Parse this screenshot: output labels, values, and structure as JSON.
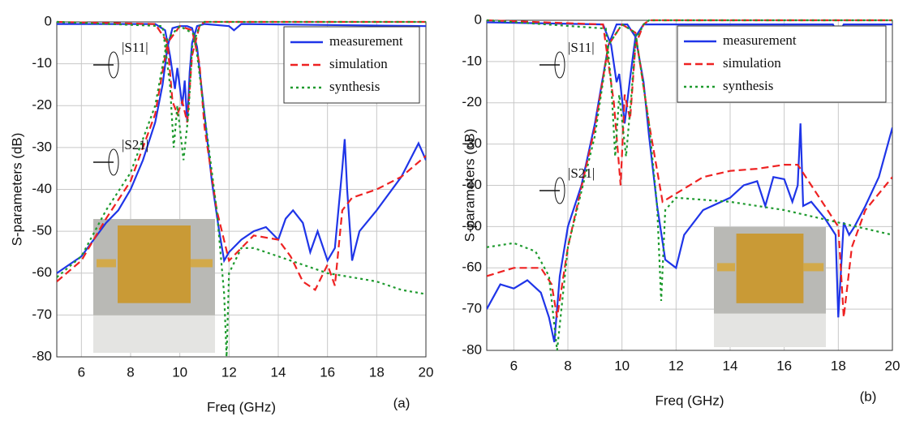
{
  "chart_data": [
    {
      "type": "line",
      "ylabel": "S-parameters (dB)",
      "xlabel": "Freq (GHz)",
      "panel": "(a)",
      "xlim": [
        5,
        20
      ],
      "xticks": [
        6,
        8,
        10,
        12,
        14,
        16,
        18,
        20
      ],
      "ylim": [
        -80,
        0
      ],
      "yticks": [
        -80,
        -70,
        -60,
        -50,
        -40,
        -30,
        -20,
        -10,
        0
      ],
      "grid": true,
      "legend": "upper right",
      "annotations": [
        "|S11|",
        "|S21|"
      ],
      "series": [
        {
          "name": "measurement",
          "color": "#1f35e8",
          "dash": "solid",
          "curves": [
            {
              "x": [
                5,
                5.5,
                6,
                6.5,
                7,
                7.5,
                8,
                8.5,
                9,
                9.3,
                9.5,
                9.7,
                10,
                10.3,
                10.5,
                10.7,
                11,
                11.3,
                11.6,
                11.8,
                12,
                12.5,
                13,
                13.5,
                14,
                14.3,
                14.6,
                15,
                15.3,
                15.6,
                16,
                16.3,
                16.6,
                16.7,
                16.8,
                17,
                17.3,
                18,
                19,
                19.7,
                20
              ],
              "values": [
                -60,
                -58,
                -56,
                -52,
                -48,
                -45,
                -40,
                -33,
                -24,
                -15,
                -6,
                -1.5,
                -1,
                -1,
                -1.5,
                -6,
                -22,
                -38,
                -50,
                -57,
                -55,
                -52,
                -50,
                -49,
                -52,
                -47,
                -45,
                -48,
                -55,
                -50,
                -57,
                -54,
                -35,
                -28,
                -40,
                -57,
                -50,
                -45,
                -37,
                -29,
                -33
              ]
            },
            {
              "x": [
                5,
                9,
                9.4,
                9.6,
                9.8,
                9.9,
                10.1,
                10.2,
                10.3,
                10.4,
                10.5,
                10.7,
                11,
                12,
                12.2,
                12.5,
                20
              ],
              "values": [
                -0.5,
                -0.5,
                -2,
                -8,
                -16,
                -11,
                -20,
                -14,
                -24,
                -12,
                -5,
                -1,
                -0.5,
                -1,
                -2,
                -0.5,
                -1
              ]
            }
          ]
        },
        {
          "name": "simulation",
          "color": "#ee2222",
          "dash": "dashed",
          "curves": [
            {
              "x": [
                5,
                6,
                7,
                8,
                9,
                9.5,
                10,
                10.5,
                10.8,
                11,
                11.5,
                12,
                12.5,
                13,
                14,
                14.5,
                15,
                15.5,
                16,
                16.3,
                16.6,
                17,
                18,
                19,
                20
              ],
              "values": [
                -62,
                -57,
                -47,
                -38,
                -22,
                -5,
                -1,
                -2,
                -10,
                -25,
                -45,
                -57,
                -54,
                -51,
                -52,
                -56,
                -62,
                -64,
                -58,
                -63,
                -45,
                -42,
                -40,
                -37,
                -32
              ]
            },
            {
              "x": [
                5,
                9,
                9.5,
                9.7,
                9.9,
                10.1,
                10.3,
                10.5,
                10.8,
                11,
                20
              ],
              "values": [
                0,
                -0.5,
                -5,
                -19,
                -22,
                -19,
                -24,
                -8,
                -1,
                0,
                0
              ]
            }
          ]
        },
        {
          "name": "synthesis",
          "color": "#1e9a2e",
          "dash": "dotted",
          "curves": [
            {
              "x": [
                5,
                6,
                7,
                8,
                9,
                9.5,
                10,
                10.6,
                11,
                11.5,
                11.8,
                11.9,
                12,
                12.5,
                13,
                14,
                15,
                16,
                17,
                18,
                19,
                20
              ],
              "values": [
                -61,
                -56,
                -45,
                -36,
                -20,
                -4,
                -1,
                -3,
                -22,
                -45,
                -65,
                -80,
                -60,
                -54,
                -54,
                -56,
                -58,
                -60,
                -61,
                -62,
                -64,
                -65
              ]
            },
            {
              "x": [
                5,
                9.3,
                9.6,
                9.75,
                9.9,
                10.15,
                10.35,
                10.5,
                10.8,
                11,
                20
              ],
              "values": [
                0,
                -1,
                -15,
                -30,
                -20,
                -33,
                -22,
                -6,
                -1,
                0,
                0
              ]
            }
          ]
        }
      ]
    },
    {
      "type": "line",
      "ylabel": "S-parameters (dB)",
      "xlabel": "Freq (GHz)",
      "panel": "(b)",
      "xlim": [
        5,
        20
      ],
      "xticks": [
        6,
        8,
        10,
        12,
        14,
        16,
        18,
        20
      ],
      "ylim": [
        -80,
        0
      ],
      "yticks": [
        -80,
        -70,
        -60,
        -50,
        -40,
        -30,
        -20,
        -10,
        0
      ],
      "grid": true,
      "legend": "upper right",
      "annotations": [
        "|S11|",
        "|S21|"
      ],
      "series": [
        {
          "name": "measurement",
          "color": "#1f35e8",
          "dash": "solid",
          "curves": [
            {
              "x": [
                5,
                5.5,
                6,
                6.5,
                7,
                7.3,
                7.5,
                7.7,
                8,
                8.5,
                9,
                9.5,
                9.8,
                10.2,
                10.5,
                10.8,
                11,
                11.3,
                11.6,
                12,
                12.3,
                13,
                14,
                14.5,
                15,
                15.3,
                15.6,
                16,
                16.3,
                16.5,
                16.6,
                16.7,
                17,
                17.5,
                17.9,
                18,
                18.2,
                18.4,
                18.6,
                19,
                19.5,
                20
              ],
              "values": [
                -70,
                -64,
                -65,
                -63,
                -66,
                -72,
                -78,
                -62,
                -50,
                -40,
                -25,
                -6,
                -1,
                -1,
                -4,
                -15,
                -28,
                -45,
                -58,
                -60,
                -52,
                -46,
                -43,
                -40,
                -39,
                -45,
                -38,
                -38.5,
                -44,
                -40,
                -25,
                -45,
                -44,
                -48,
                -52,
                -72,
                -49,
                -52,
                -50,
                -45,
                -38,
                -26
              ]
            },
            {
              "x": [
                5,
                9.3,
                9.6,
                9.8,
                9.9,
                10.1,
                10.3,
                10.5,
                10.8,
                17.8,
                18,
                18.2,
                20
              ],
              "values": [
                -0.5,
                -1,
                -6,
                -15,
                -13,
                -25,
                -14,
                -4,
                -1,
                -1,
                -3.5,
                -1,
                -1
              ]
            }
          ]
        },
        {
          "name": "simulation",
          "color": "#ee2222",
          "dash": "dashed",
          "curves": [
            {
              "x": [
                5,
                6,
                7,
                7.4,
                7.6,
                8,
                9,
                9.5,
                10,
                10.5,
                11,
                11.5,
                12,
                13,
                14,
                15,
                16,
                16.5,
                17,
                17.5,
                18,
                18.2,
                18.5,
                19,
                20
              ],
              "values": [
                -62,
                -60,
                -60,
                -64,
                -72,
                -55,
                -26,
                -6,
                -1,
                -3,
                -25,
                -44,
                -42,
                -38,
                -36.5,
                -36,
                -35,
                -35,
                -40,
                -45,
                -50,
                -72,
                -55,
                -46,
                -38
              ]
            },
            {
              "x": [
                5,
                9.3,
                9.7,
                9.95,
                10.1,
                10.3,
                10.5,
                10.8,
                11,
                20
              ],
              "values": [
                0,
                -1,
                -20,
                -40,
                -18,
                -24,
                -6,
                -1,
                0,
                0
              ]
            }
          ]
        },
        {
          "name": "synthesis",
          "color": "#1e9a2e",
          "dash": "dotted",
          "curves": [
            {
              "x": [
                5,
                6,
                6.8,
                7.3,
                7.6,
                8,
                9,
                9.5,
                10,
                10.5,
                11,
                11.3,
                11.45,
                11.6,
                12,
                14,
                16,
                18,
                20
              ],
              "values": [
                -55,
                -54,
                -56,
                -62,
                -80,
                -55,
                -28,
                -6,
                -1,
                -3,
                -25,
                -45,
                -68,
                -46,
                -43,
                -44,
                -46,
                -49,
                -52
              ]
            },
            {
              "x": [
                5,
                9.4,
                9.6,
                9.75,
                9.9,
                10.15,
                10.35,
                10.5,
                10.8,
                11,
                20
              ],
              "values": [
                0,
                -2,
                -15,
                -33,
                -18,
                -33,
                -18,
                -5,
                -1,
                0,
                0
              ]
            }
          ]
        }
      ]
    }
  ]
}
